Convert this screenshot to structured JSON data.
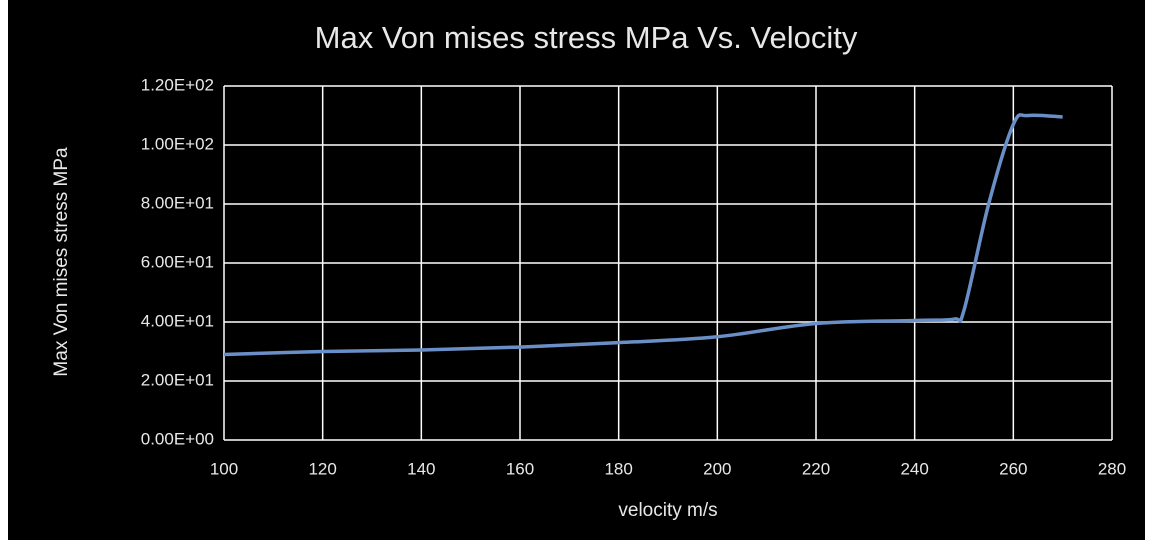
{
  "chart_data": {
    "type": "line",
    "title": "Max Von mises stress MPa Vs. Velocity",
    "xlabel": "velocity m/s",
    "ylabel": "Max Von mises stress MPa",
    "x": [
      100,
      120,
      140,
      160,
      180,
      200,
      220,
      240,
      248,
      250,
      255,
      260,
      263,
      270
    ],
    "values": [
      29,
      30,
      30.5,
      31.5,
      33,
      35,
      39.5,
      40.5,
      41,
      44,
      80,
      107,
      110,
      109.5
    ],
    "color": "#6a8fc7",
    "xlim": [
      100,
      280
    ],
    "xticks": [
      100,
      120,
      140,
      160,
      180,
      200,
      220,
      240,
      260,
      280
    ],
    "ylim": [
      0,
      120
    ],
    "yticks": [
      {
        "value": 0,
        "label": "0.00E+00"
      },
      {
        "value": 20,
        "label": "2.00E+01"
      },
      {
        "value": 40,
        "label": "4.00E+01"
      },
      {
        "value": 60,
        "label": "6.00E+01"
      },
      {
        "value": 80,
        "label": "8.00E+01"
      },
      {
        "value": 100,
        "label": "1.00E+02"
      },
      {
        "value": 120,
        "label": "1.20E+02"
      }
    ],
    "grid": true
  }
}
